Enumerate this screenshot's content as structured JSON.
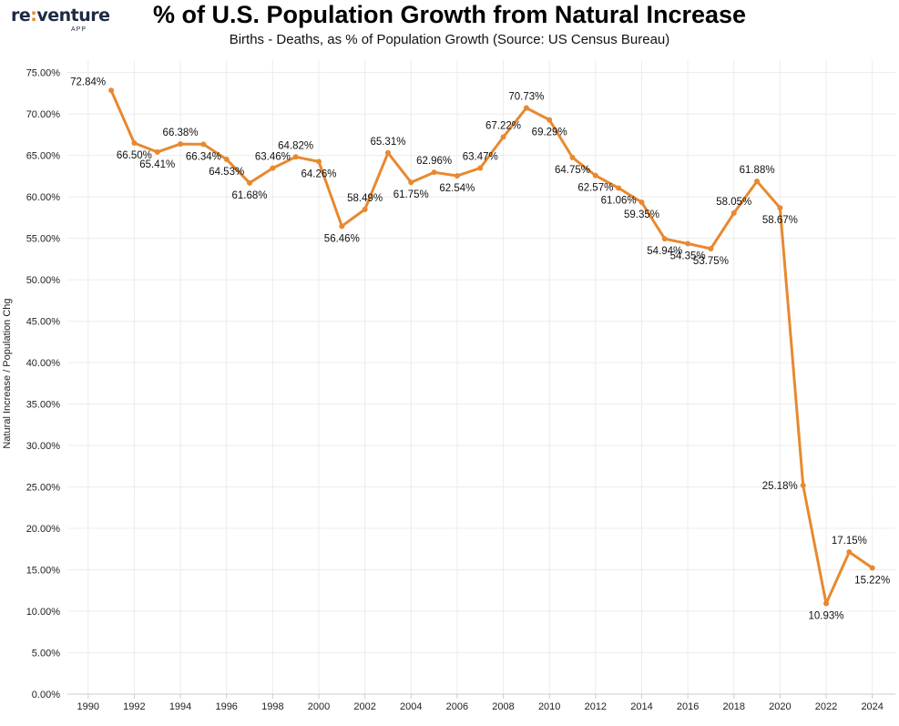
{
  "brand": {
    "logo_text_left": "re",
    "logo_text_sep": ":",
    "logo_text_right": "venture",
    "logo_sub": "APP"
  },
  "colors": {
    "line": "#e8892f",
    "grid": "#ececec",
    "axis": "#cccccc"
  },
  "chart_data": {
    "type": "line",
    "title": "% of U.S. Population Growth from Natural Increase",
    "subtitle": "Births - Deaths, as % of Population Growth (Source: US Census Bureau)",
    "xlabel": "",
    "ylabel": "Natural Increase / Population Chg",
    "x": [
      1991,
      1992,
      1993,
      1994,
      1995,
      1996,
      1997,
      1998,
      1999,
      2000,
      2001,
      2002,
      2003,
      2004,
      2005,
      2006,
      2007,
      2008,
      2009,
      2010,
      2011,
      2012,
      2013,
      2014,
      2015,
      2016,
      2017,
      2018,
      2019,
      2020,
      2021,
      2022,
      2023,
      2024
    ],
    "values": [
      72.84,
      66.5,
      65.41,
      66.38,
      66.34,
      64.53,
      61.68,
      63.46,
      64.82,
      64.26,
      56.46,
      58.49,
      65.31,
      61.75,
      62.96,
      62.54,
      63.47,
      67.22,
      70.73,
      69.29,
      64.75,
      62.57,
      61.06,
      59.35,
      54.94,
      54.35,
      53.75,
      58.05,
      61.88,
      58.67,
      25.18,
      10.93,
      17.15,
      15.22
    ],
    "labels": [
      "72.84%",
      "66.50%",
      "65.41%",
      "66.38%",
      "66.34%",
      "64.53%",
      "61.68%",
      "63.46%",
      "64.82%",
      "64.26%",
      "56.46%",
      "58.49%",
      "65.31%",
      "61.75%",
      "62.96%",
      "62.54%",
      "63.47%",
      "67.22%",
      "70.73%",
      "69.29%",
      "64.75%",
      "62.57%",
      "61.06%",
      "59.35%",
      "54.94%",
      "54.35%",
      "53.75%",
      "58.05%",
      "61.88%",
      "58.67%",
      "25.18%",
      "10.93%",
      "17.15%",
      "15.22%"
    ],
    "xlim": [
      1989.1,
      2025.0
    ],
    "x_ticks": [
      "1990",
      "1992",
      "1994",
      "1996",
      "1998",
      "2000",
      "2002",
      "2004",
      "2006",
      "2008",
      "2010",
      "2012",
      "2014",
      "2016",
      "2018",
      "2020",
      "2022",
      "2024"
    ],
    "ylim": [
      0,
      76.5
    ],
    "y_ticks": [
      "0.00%",
      "5.00%",
      "10.00%",
      "15.00%",
      "20.00%",
      "25.00%",
      "30.00%",
      "35.00%",
      "40.00%",
      "45.00%",
      "50.00%",
      "55.00%",
      "60.00%",
      "65.00%",
      "70.00%",
      "75.00%"
    ],
    "grid": true,
    "legend": "none"
  }
}
